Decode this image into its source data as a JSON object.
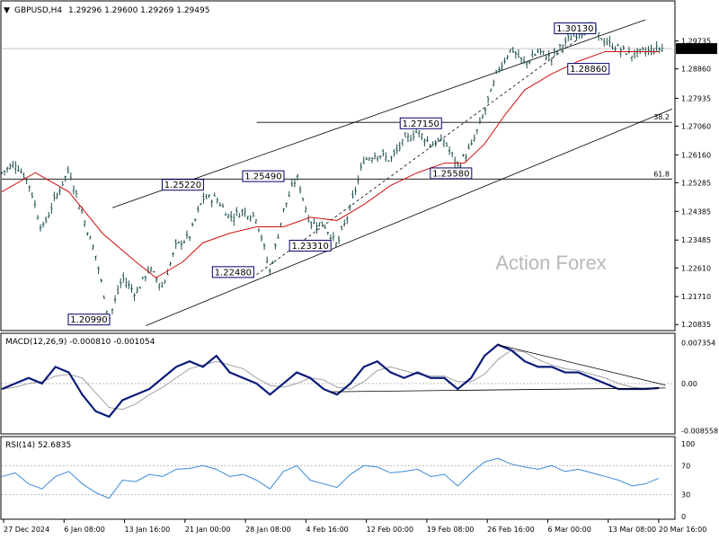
{
  "header": {
    "symbol": "GBPUSD,H4",
    "ohlc": "1.29296 1.29600 1.29269 1.29495",
    "menu_glyph": "▼"
  },
  "watermark": "Action Forex",
  "colors": {
    "price": "#1f4f4f",
    "ma": "#d01010",
    "channel": "#000000",
    "macd": "#0a1a7a",
    "signal": "#a0a0a0",
    "rsi": "#3a8ad8",
    "box_border": "#00006a"
  },
  "chart_data": [
    {
      "type": "candlestick",
      "title": "GBPUSD,H4",
      "y_ticks": [
        "1.29735",
        "1.28860",
        "1.27935",
        "1.27060",
        "1.26160",
        "1.25285",
        "1.24385",
        "1.23485",
        "1.22610",
        "1.21710",
        "1.20835"
      ],
      "ylim": [
        1.207,
        1.304
      ],
      "x_ticks": [
        "27 Dec 2024",
        "6 Jan 08:00",
        "13 Jan 16:00",
        "21 Jan 00:00",
        "28 Jan 08:00",
        "4 Feb 16:00",
        "12 Feb 00:00",
        "19 Feb 08:00",
        "26 Feb 16:00",
        "6 Mar 00:00",
        "13 Mar 08:00",
        "20 Mar 16:00"
      ],
      "current_price": "1.29495",
      "price_path": [
        [
          0,
          1.256
        ],
        [
          0.02,
          1.259
        ],
        [
          0.04,
          1.253
        ],
        [
          0.06,
          1.238
        ],
        [
          0.08,
          1.248
        ],
        [
          0.1,
          1.257
        ],
        [
          0.12,
          1.243
        ],
        [
          0.14,
          1.23
        ],
        [
          0.16,
          1.2099
        ],
        [
          0.18,
          1.223
        ],
        [
          0.2,
          1.218
        ],
        [
          0.22,
          1.226
        ],
        [
          0.24,
          1.22
        ],
        [
          0.26,
          1.233
        ],
        [
          0.28,
          1.236
        ],
        [
          0.3,
          1.248
        ],
        [
          0.32,
          1.248
        ],
        [
          0.34,
          1.242
        ],
        [
          0.36,
          1.244
        ],
        [
          0.38,
          1.242
        ],
        [
          0.4,
          1.2248
        ],
        [
          0.42,
          1.244
        ],
        [
          0.44,
          1.2549
        ],
        [
          0.46,
          1.24
        ],
        [
          0.48,
          1.24
        ],
        [
          0.5,
          1.2331
        ],
        [
          0.52,
          1.245
        ],
        [
          0.54,
          1.26
        ],
        [
          0.56,
          1.262
        ],
        [
          0.58,
          1.26
        ],
        [
          0.6,
          1.266
        ],
        [
          0.62,
          1.269
        ],
        [
          0.64,
          1.265
        ],
        [
          0.66,
          1.266
        ],
        [
          0.68,
          1.258
        ],
        [
          0.7,
          1.264
        ],
        [
          0.72,
          1.275
        ],
        [
          0.74,
          1.288
        ],
        [
          0.76,
          1.295
        ],
        [
          0.78,
          1.29
        ],
        [
          0.8,
          1.294
        ],
        [
          0.82,
          1.292
        ],
        [
          0.84,
          1.297
        ],
        [
          0.86,
          1.3
        ],
        [
          0.88,
          1.3013
        ],
        [
          0.9,
          1.297
        ],
        [
          0.92,
          1.295
        ],
        [
          0.94,
          1.293
        ],
        [
          0.96,
          1.294
        ],
        [
          0.98,
          1.295
        ]
      ],
      "ma_path": [
        [
          0,
          1.25
        ],
        [
          0.05,
          1.256
        ],
        [
          0.1,
          1.25
        ],
        [
          0.15,
          1.237
        ],
        [
          0.2,
          1.228
        ],
        [
          0.23,
          1.223
        ],
        [
          0.27,
          1.228
        ],
        [
          0.3,
          1.234
        ],
        [
          0.34,
          1.237
        ],
        [
          0.38,
          1.239
        ],
        [
          0.42,
          1.239
        ],
        [
          0.46,
          1.242
        ],
        [
          0.5,
          1.241
        ],
        [
          0.54,
          1.246
        ],
        [
          0.58,
          1.252
        ],
        [
          0.62,
          1.256
        ],
        [
          0.66,
          1.259
        ],
        [
          0.69,
          1.259
        ],
        [
          0.72,
          1.265
        ],
        [
          0.75,
          1.274
        ],
        [
          0.78,
          1.282
        ],
        [
          0.82,
          1.287
        ],
        [
          0.86,
          1.291
        ],
        [
          0.9,
          1.294
        ],
        [
          0.94,
          1.294
        ],
        [
          0.98,
          1.294
        ]
      ],
      "channel_upper": [
        [
          0.165,
          1.245
        ],
        [
          0.96,
          1.304
        ]
      ],
      "channel_lower": [
        [
          0.215,
          1.208
        ],
        [
          1.0,
          1.276
        ]
      ],
      "trend_dashed": [
        [
          0.38,
          1.224
        ],
        [
          0.86,
          1.298
        ]
      ],
      "hlines": [
        {
          "label": "38.2",
          "y": 1.2718,
          "x_start": 0.38
        },
        {
          "label": "61.8",
          "y": 1.254,
          "x_start": 0.0
        }
      ],
      "annotations": [
        {
          "text": "1.30130",
          "y": 1.3013,
          "x": 0.855
        },
        {
          "text": "1.28860",
          "y": 1.2886,
          "x": 0.875
        },
        {
          "text": "1.27150",
          "y": 1.2715,
          "x": 0.625
        },
        {
          "text": "1.25580",
          "y": 1.2558,
          "x": 0.67
        },
        {
          "text": "1.25490",
          "y": 1.2549,
          "x": 0.39
        },
        {
          "text": "1.25220",
          "y": 1.2522,
          "x": 0.27
        },
        {
          "text": "1.23310",
          "y": 1.2331,
          "x": 0.46
        },
        {
          "text": "1.22480",
          "y": 1.2248,
          "x": 0.345
        },
        {
          "text": "1.20990",
          "y": 1.2099,
          "x": 0.13
        }
      ]
    },
    {
      "type": "line",
      "title": "MACD(12,26,9) -0.000810 -0.001054",
      "y_ticks": [
        "0.007354",
        "0.00",
        "-0.008558"
      ],
      "ylim": [
        -0.0086,
        0.0076
      ],
      "series": [
        {
          "values": [
            [
              0,
              -0.001
            ],
            [
              0.02,
              0.0
            ],
            [
              0.04,
              0.001
            ],
            [
              0.06,
              0.0
            ],
            [
              0.08,
              0.003
            ],
            [
              0.1,
              0.002
            ],
            [
              0.12,
              -0.002
            ],
            [
              0.14,
              -0.005
            ],
            [
              0.16,
              -0.006
            ],
            [
              0.18,
              -0.003
            ],
            [
              0.2,
              -0.002
            ],
            [
              0.22,
              -0.001
            ],
            [
              0.24,
              0.001
            ],
            [
              0.26,
              0.003
            ],
            [
              0.28,
              0.004
            ],
            [
              0.3,
              0.003
            ],
            [
              0.32,
              0.005
            ],
            [
              0.34,
              0.002
            ],
            [
              0.36,
              0.001
            ],
            [
              0.38,
              0.0
            ],
            [
              0.4,
              -0.002
            ],
            [
              0.42,
              0.0
            ],
            [
              0.44,
              0.002
            ],
            [
              0.46,
              0.001
            ],
            [
              0.48,
              -0.001
            ],
            [
              0.5,
              -0.002
            ],
            [
              0.52,
              0.0
            ],
            [
              0.54,
              0.003
            ],
            [
              0.56,
              0.004
            ],
            [
              0.58,
              0.002
            ],
            [
              0.6,
              0.001
            ],
            [
              0.62,
              0.002
            ],
            [
              0.64,
              0.001
            ],
            [
              0.66,
              0.001
            ],
            [
              0.68,
              -0.001
            ],
            [
              0.7,
              0.001
            ],
            [
              0.72,
              0.005
            ],
            [
              0.74,
              0.007
            ],
            [
              0.76,
              0.006
            ],
            [
              0.78,
              0.004
            ],
            [
              0.8,
              0.003
            ],
            [
              0.82,
              0.003
            ],
            [
              0.84,
              0.002
            ],
            [
              0.86,
              0.002
            ],
            [
              0.88,
              0.001
            ],
            [
              0.9,
              0.0
            ],
            [
              0.92,
              -0.001
            ],
            [
              0.94,
              -0.001
            ],
            [
              0.96,
              -0.001
            ],
            [
              0.98,
              -0.0008
            ]
          ]
        }
      ]
    },
    {
      "type": "line",
      "title": "RSI(14) 52.6835",
      "y_ticks": [
        "100",
        "70",
        "30",
        "0"
      ],
      "ylim": [
        0,
        100
      ],
      "levels": [
        70,
        30
      ],
      "series": [
        {
          "values": [
            [
              0,
              55
            ],
            [
              0.02,
              60
            ],
            [
              0.04,
              45
            ],
            [
              0.06,
              38
            ],
            [
              0.08,
              55
            ],
            [
              0.1,
              62
            ],
            [
              0.12,
              45
            ],
            [
              0.14,
              33
            ],
            [
              0.16,
              25
            ],
            [
              0.18,
              50
            ],
            [
              0.2,
              48
            ],
            [
              0.22,
              58
            ],
            [
              0.24,
              55
            ],
            [
              0.26,
              65
            ],
            [
              0.28,
              66
            ],
            [
              0.3,
              70
            ],
            [
              0.32,
              65
            ],
            [
              0.34,
              55
            ],
            [
              0.36,
              58
            ],
            [
              0.38,
              50
            ],
            [
              0.4,
              38
            ],
            [
              0.42,
              62
            ],
            [
              0.44,
              70
            ],
            [
              0.46,
              50
            ],
            [
              0.48,
              45
            ],
            [
              0.5,
              40
            ],
            [
              0.52,
              58
            ],
            [
              0.54,
              70
            ],
            [
              0.56,
              68
            ],
            [
              0.58,
              60
            ],
            [
              0.6,
              62
            ],
            [
              0.62,
              65
            ],
            [
              0.64,
              55
            ],
            [
              0.66,
              58
            ],
            [
              0.68,
              42
            ],
            [
              0.7,
              60
            ],
            [
              0.72,
              75
            ],
            [
              0.74,
              80
            ],
            [
              0.76,
              72
            ],
            [
              0.78,
              68
            ],
            [
              0.8,
              65
            ],
            [
              0.82,
              70
            ],
            [
              0.84,
              62
            ],
            [
              0.86,
              65
            ],
            [
              0.88,
              60
            ],
            [
              0.9,
              55
            ],
            [
              0.92,
              50
            ],
            [
              0.94,
              42
            ],
            [
              0.96,
              45
            ],
            [
              0.98,
              52.7
            ]
          ]
        }
      ]
    }
  ],
  "rsi_levels_labels": [
    "70",
    "30"
  ]
}
